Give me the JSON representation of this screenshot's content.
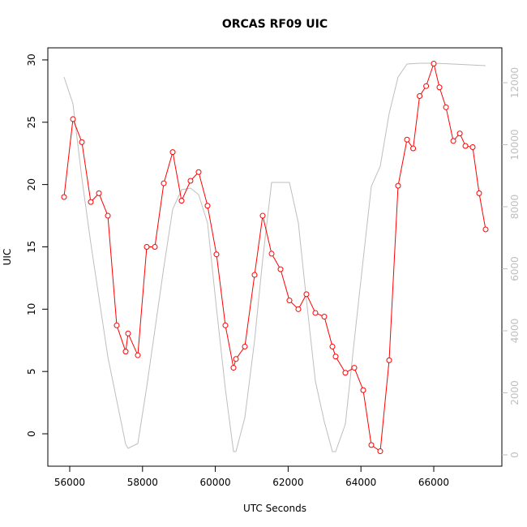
{
  "chart_data": {
    "type": "line",
    "title": "ORCAS RF09 UIC",
    "x_label": "UTC Seconds",
    "y_label": "UIC",
    "xlim": [
      55399,
      67871
    ],
    "xticks": [
      56000,
      58000,
      60000,
      62000,
      64000,
      66000
    ],
    "ylim": [
      -2.6,
      30.97
    ],
    "yticks": [
      0,
      5,
      10,
      15,
      20,
      25,
      30
    ],
    "y2lim": [
      -366,
      13124
    ],
    "y2ticks": [
      0,
      2000,
      4000,
      6000,
      8000,
      10000,
      12000
    ],
    "y2_color": "#bebebe",
    "series": [
      {
        "color": "#bebebe",
        "axis": "y2",
        "marker": "none",
        "x": [
          55844,
          56089,
          56334,
          56579,
          57047,
          57537,
          57604,
          57871,
          58116,
          58584,
          58829,
          59073,
          59318,
          59541,
          59786,
          60031,
          60276,
          60499,
          60566,
          60811,
          61078,
          61301,
          61546,
          61791,
          62036,
          62281,
          62503,
          62748,
          62993,
          63216,
          63305,
          63572,
          63817,
          64062,
          64285,
          64530,
          64775,
          65020,
          65265,
          65612,
          66000,
          66536,
          67425
        ],
        "values": [
          12183,
          11320,
          8915,
          6824,
          3163,
          340,
          209,
          366,
          2196,
          6039,
          7922,
          8549,
          8601,
          8392,
          7477,
          4732,
          2118,
          105,
          105,
          1203,
          3686,
          6301,
          8784,
          8784,
          8784,
          7477,
          4993,
          2379,
          1072,
          105,
          105,
          993,
          3686,
          6301,
          8654,
          9307,
          11007,
          12183,
          12601,
          12627,
          12627,
          12601,
          12549
        ]
      },
      {
        "color": "#ff0000",
        "axis": "y",
        "marker": "circle",
        "x": [
          55844,
          56089,
          56334,
          56579,
          56802,
          57047,
          57292,
          57537,
          57604,
          57871,
          58116,
          58339,
          58584,
          58829,
          59073,
          59318,
          59541,
          59786,
          60031,
          60276,
          60499,
          60566,
          60811,
          61078,
          61301,
          61546,
          61791,
          62036,
          62281,
          62503,
          62748,
          62993,
          63216,
          63305,
          63572,
          63817,
          64062,
          64285,
          64530,
          64775,
          65020,
          65265,
          65434,
          65612,
          65791,
          66000,
          66157,
          66336,
          66536,
          66715,
          66870,
          67069,
          67247,
          67425
        ],
        "values": [
          19.0,
          25.25,
          23.4,
          18.6,
          19.3,
          17.5,
          8.7,
          6.6,
          8.05,
          6.3,
          15.0,
          15.0,
          20.1,
          22.6,
          18.7,
          20.3,
          21.0,
          18.3,
          14.4,
          8.7,
          5.3,
          6.0,
          7.0,
          12.75,
          17.5,
          14.45,
          13.2,
          10.7,
          10.0,
          11.2,
          9.7,
          9.4,
          7.0,
          6.2,
          4.9,
          5.3,
          3.5,
          -0.9,
          -1.4,
          5.9,
          19.9,
          23.6,
          22.9,
          27.1,
          27.9,
          29.7,
          27.8,
          26.2,
          23.5,
          24.1,
          23.1,
          23.0,
          19.3,
          16.4
        ]
      }
    ]
  }
}
